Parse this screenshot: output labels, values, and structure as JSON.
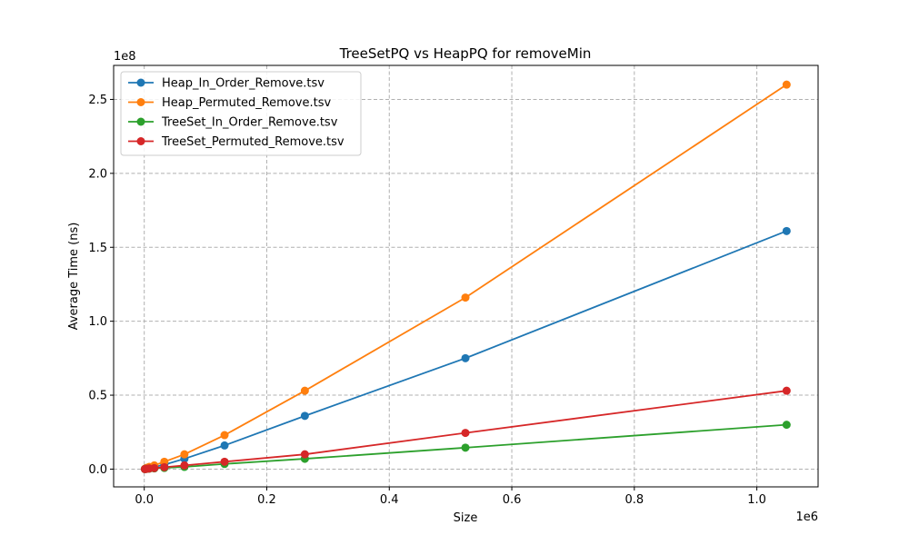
{
  "chart_data": {
    "type": "line",
    "title": "TreeSetPQ vs HeapPQ for removeMin",
    "xlabel": "Size",
    "ylabel": "Average Time (ns)",
    "x_offset_label": "1e6",
    "y_offset_label": "1e8",
    "xlim": [
      -50000,
      1100000
    ],
    "ylim": [
      -12000000,
      273000000
    ],
    "xticks": [
      0,
      200000,
      400000,
      600000,
      800000,
      1000000
    ],
    "xtick_labels": [
      "0.0",
      "0.2",
      "0.4",
      "0.6",
      "0.8",
      "1.0"
    ],
    "yticks": [
      0,
      50000000,
      100000000,
      150000000,
      200000000,
      250000000
    ],
    "ytick_labels": [
      "0.0",
      "0.5",
      "1.0",
      "1.5",
      "2.0",
      "2.5"
    ],
    "grid": true,
    "legend_position": "top-left",
    "x": [
      1024,
      2048,
      4096,
      8192,
      16384,
      32768,
      65536,
      131072,
      262144,
      524288,
      1048576
    ],
    "series": [
      {
        "name": "Heap_In_Order_Remove.tsv",
        "color": "#1f77b4",
        "values": [
          100000,
          200000,
          500000,
          1000000,
          1500000,
          3000000,
          7000000,
          16000000,
          36000000,
          75000000,
          161000000
        ]
      },
      {
        "name": "Heap_Permuted_Remove.tsv",
        "color": "#ff7f0e",
        "values": [
          200000,
          400000,
          900000,
          1500000,
          2500000,
          5000000,
          10000000,
          23000000,
          53000000,
          116000000,
          260000000
        ]
      },
      {
        "name": "TreeSet_In_Order_Remove.tsv",
        "color": "#2ca02c",
        "values": [
          50000,
          100000,
          200000,
          300000,
          500000,
          800000,
          1500000,
          3500000,
          7000000,
          14500000,
          30000000
        ]
      },
      {
        "name": "TreeSet_Permuted_Remove.tsv",
        "color": "#d62728",
        "values": [
          50000,
          100000,
          200000,
          400000,
          700000,
          1300000,
          2500000,
          5000000,
          10000000,
          24500000,
          53000000
        ]
      }
    ]
  }
}
